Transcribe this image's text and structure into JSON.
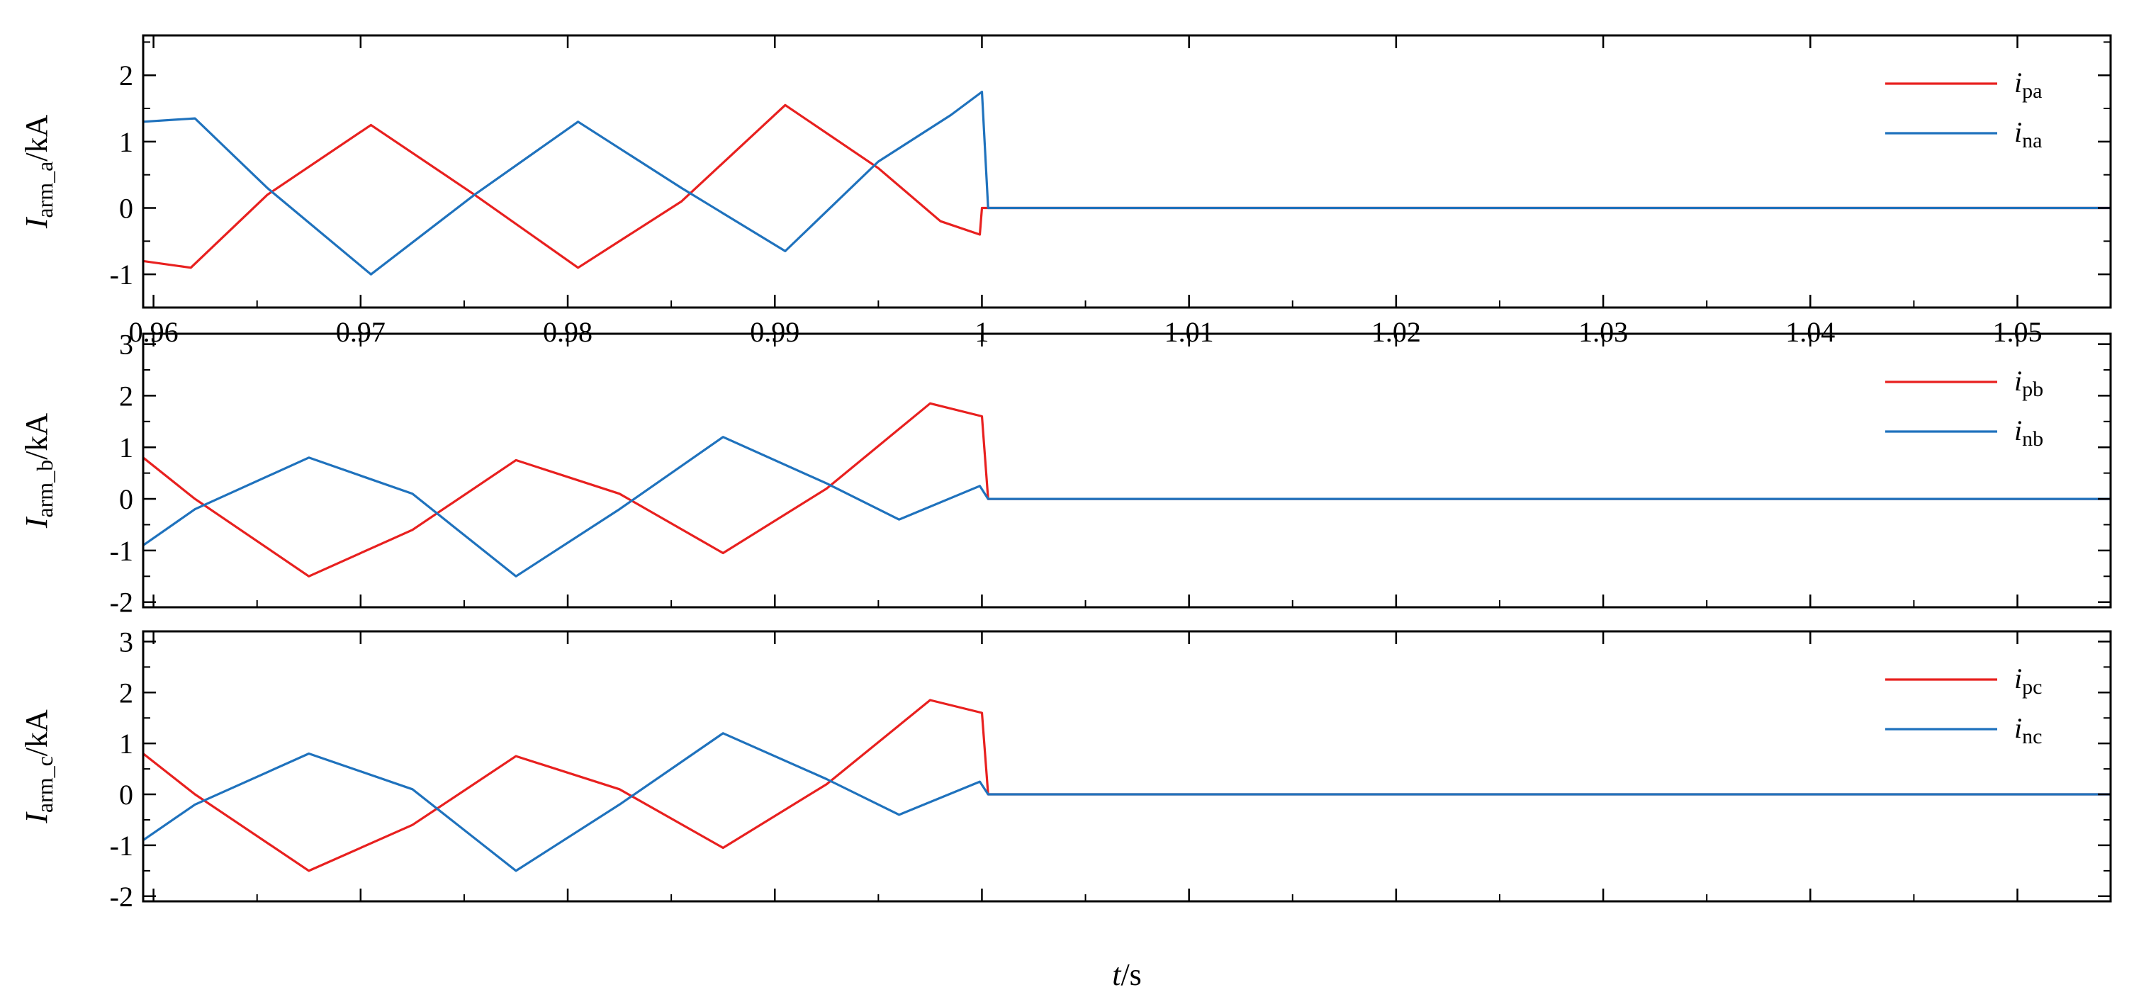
{
  "chart_data": [
    {
      "type": "line",
      "ylabel": {
        "main": "I",
        "sub": "arm_a",
        "unit": "/kA"
      },
      "ylim": [
        -1.5,
        2.6
      ],
      "yticks": [
        -1,
        0,
        1,
        2
      ],
      "xlim": [
        0.9595,
        1.0545
      ],
      "xticks": [
        0.96,
        0.97,
        0.98,
        0.99,
        1,
        1.01,
        1.02,
        1.03,
        1.04,
        1.05
      ],
      "xtick_labels": [
        "0.96",
        "0.97",
        "0.98",
        "0.99",
        "1",
        "1.01",
        "1.02",
        "1.03",
        "1.04",
        "1.05"
      ],
      "grid": false,
      "legend_position": "top-right",
      "series": [
        {
          "name": "i",
          "name_sub": "pa",
          "color": "#e8201f",
          "x": [
            0.9595,
            0.9618,
            0.9655,
            0.9705,
            0.9755,
            0.9805,
            0.9855,
            0.9905,
            0.995,
            0.998,
            0.9999,
            1.0,
            1.0545
          ],
          "y": [
            -0.8,
            -0.9,
            0.2,
            1.25,
            0.2,
            -0.9,
            0.1,
            1.55,
            0.6,
            -0.2,
            -0.4,
            0.0,
            0.0
          ]
        },
        {
          "name": "i",
          "name_sub": "na",
          "color": "#1f72bd",
          "x": [
            0.9595,
            0.962,
            0.9655,
            0.9705,
            0.9755,
            0.9805,
            0.9855,
            0.9905,
            0.995,
            0.9985,
            1.0,
            1.0003,
            1.0545
          ],
          "y": [
            1.3,
            1.35,
            0.3,
            -1.0,
            0.2,
            1.3,
            0.3,
            -0.65,
            0.7,
            1.4,
            1.75,
            0.0,
            0.0
          ]
        }
      ]
    },
    {
      "type": "line",
      "ylabel": {
        "main": "I",
        "sub": "arm_b",
        "unit": "/kA"
      },
      "ylim": [
        -2.1,
        3.2
      ],
      "yticks": [
        -2,
        -1,
        0,
        1,
        2,
        3
      ],
      "xlim": [
        0.9595,
        1.0545
      ],
      "xticks": [
        0.96,
        0.97,
        0.98,
        0.99,
        1,
        1.01,
        1.02,
        1.03,
        1.04,
        1.05
      ],
      "grid": false,
      "legend_position": "top-right",
      "series": [
        {
          "name": "i",
          "name_sub": "pb",
          "color": "#e8201f",
          "x": [
            0.9595,
            0.962,
            0.9675,
            0.9725,
            0.9775,
            0.9825,
            0.9875,
            0.9925,
            0.9975,
            1.0,
            1.0003,
            1.0545
          ],
          "y": [
            0.8,
            0.0,
            -1.5,
            -0.6,
            0.75,
            0.1,
            -1.05,
            0.2,
            1.85,
            1.6,
            0.0,
            0.0
          ]
        },
        {
          "name": "i",
          "name_sub": "nb",
          "color": "#1f72bd",
          "x": [
            0.9595,
            0.962,
            0.9675,
            0.9725,
            0.9775,
            0.9825,
            0.9875,
            0.9925,
            0.996,
            0.9999,
            1.0003,
            1.0545
          ],
          "y": [
            -0.9,
            -0.2,
            0.8,
            0.1,
            -1.5,
            -0.2,
            1.2,
            0.3,
            -0.4,
            0.25,
            0.0,
            0.0
          ]
        }
      ]
    },
    {
      "type": "line",
      "ylabel": {
        "main": "I",
        "sub": "arm_c",
        "unit": "/kA"
      },
      "ylim": [
        -2.1,
        3.2
      ],
      "yticks": [
        -2,
        -1,
        0,
        1,
        2,
        3
      ],
      "xlim": [
        0.9595,
        1.0545
      ],
      "xticks": [
        0.96,
        0.97,
        0.98,
        0.99,
        1,
        1.01,
        1.02,
        1.03,
        1.04,
        1.05
      ],
      "xlabel": {
        "main": "t",
        "unit": "/s"
      },
      "grid": false,
      "legend_position": "top-right",
      "series": [
        {
          "name": "i",
          "name_sub": "pc",
          "color": "#e8201f",
          "x": [
            0.9595,
            0.962,
            0.9675,
            0.9725,
            0.9775,
            0.9825,
            0.9875,
            0.9925,
            0.9975,
            1.0,
            1.0003,
            1.0545
          ],
          "y": [
            0.8,
            0.0,
            -1.5,
            -0.6,
            0.75,
            0.1,
            -1.05,
            0.2,
            1.85,
            1.6,
            0.0,
            0.0
          ]
        },
        {
          "name": "i",
          "name_sub": "nc",
          "color": "#1f72bd",
          "x": [
            0.9595,
            0.962,
            0.9675,
            0.9725,
            0.9775,
            0.9825,
            0.9875,
            0.9925,
            0.996,
            0.9999,
            1.0003,
            1.0545
          ],
          "y": [
            -0.9,
            -0.2,
            0.8,
            0.1,
            -1.5,
            -0.2,
            1.2,
            0.3,
            -0.4,
            0.25,
            0.0,
            0.0
          ]
        }
      ]
    }
  ]
}
